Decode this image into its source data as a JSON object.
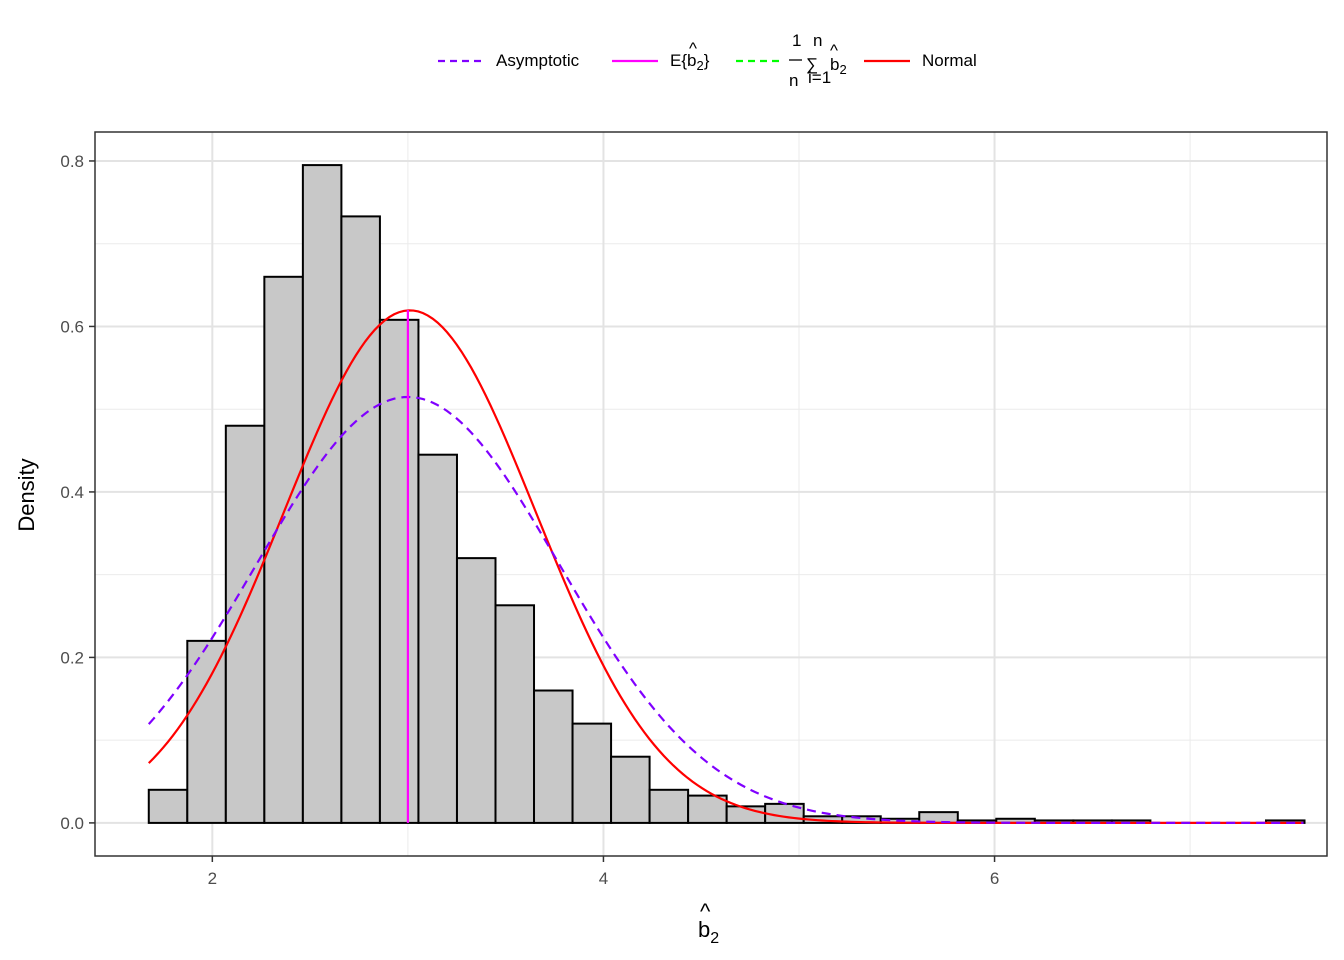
{
  "chart_data": {
    "type": "histogram",
    "xlabel": "b̂₂",
    "ylabel": "Density",
    "xlim": [
      1.4,
      7.7
    ],
    "ylim": [
      -0.04,
      0.835
    ],
    "x_ticks": [
      2,
      4,
      6
    ],
    "x_tick_labels": [
      "2",
      "4",
      "6"
    ],
    "y_ticks": [
      0.0,
      0.2,
      0.4,
      0.6,
      0.8
    ],
    "y_tick_labels": [
      "0.0",
      "0.2",
      "0.4",
      "0.6",
      "0.8"
    ],
    "grid": true,
    "legend_position": "top",
    "legend": [
      {
        "key": "asymptotic",
        "label": "Asymptotic",
        "color": "#8000ff",
        "dash": "dashed"
      },
      {
        "key": "expected",
        "label": "E{b̂₂}",
        "color": "#ff00ff",
        "dash": "solid"
      },
      {
        "key": "sample_mean",
        "label": "1/n Σ b̂₂ (i=1..n)",
        "color": "#00ff00",
        "dash": "dashed"
      },
      {
        "key": "normal",
        "label": "Normal",
        "color": "#ff0000",
        "dash": "solid"
      }
    ],
    "bins": {
      "start": 1.675,
      "width": 0.197,
      "densities": [
        0.04,
        0.22,
        0.48,
        0.66,
        0.795,
        0.733,
        0.608,
        0.445,
        0.32,
        0.263,
        0.16,
        0.12,
        0.08,
        0.04,
        0.033,
        0.02,
        0.023,
        0.008,
        0.008,
        0.005,
        0.013,
        0.003,
        0.005,
        0.003,
        0.003,
        0.003,
        0.0,
        0.0,
        0.0,
        0.003
      ]
    },
    "series": [
      {
        "key": "normal",
        "type": "normal_density",
        "mean": 3.01,
        "sd": 0.644,
        "x_range": [
          1.675,
          7.58
        ]
      },
      {
        "key": "asymptotic",
        "type": "normal_density",
        "mean": 3.0,
        "sd": 0.775,
        "x_range": [
          1.675,
          7.58
        ]
      },
      {
        "key": "expected",
        "type": "vline",
        "x": 3.0,
        "y_top": 0.62
      },
      {
        "key": "sample_mean",
        "type": "vline",
        "x": 3.0,
        "y_top": 0.62
      }
    ]
  }
}
